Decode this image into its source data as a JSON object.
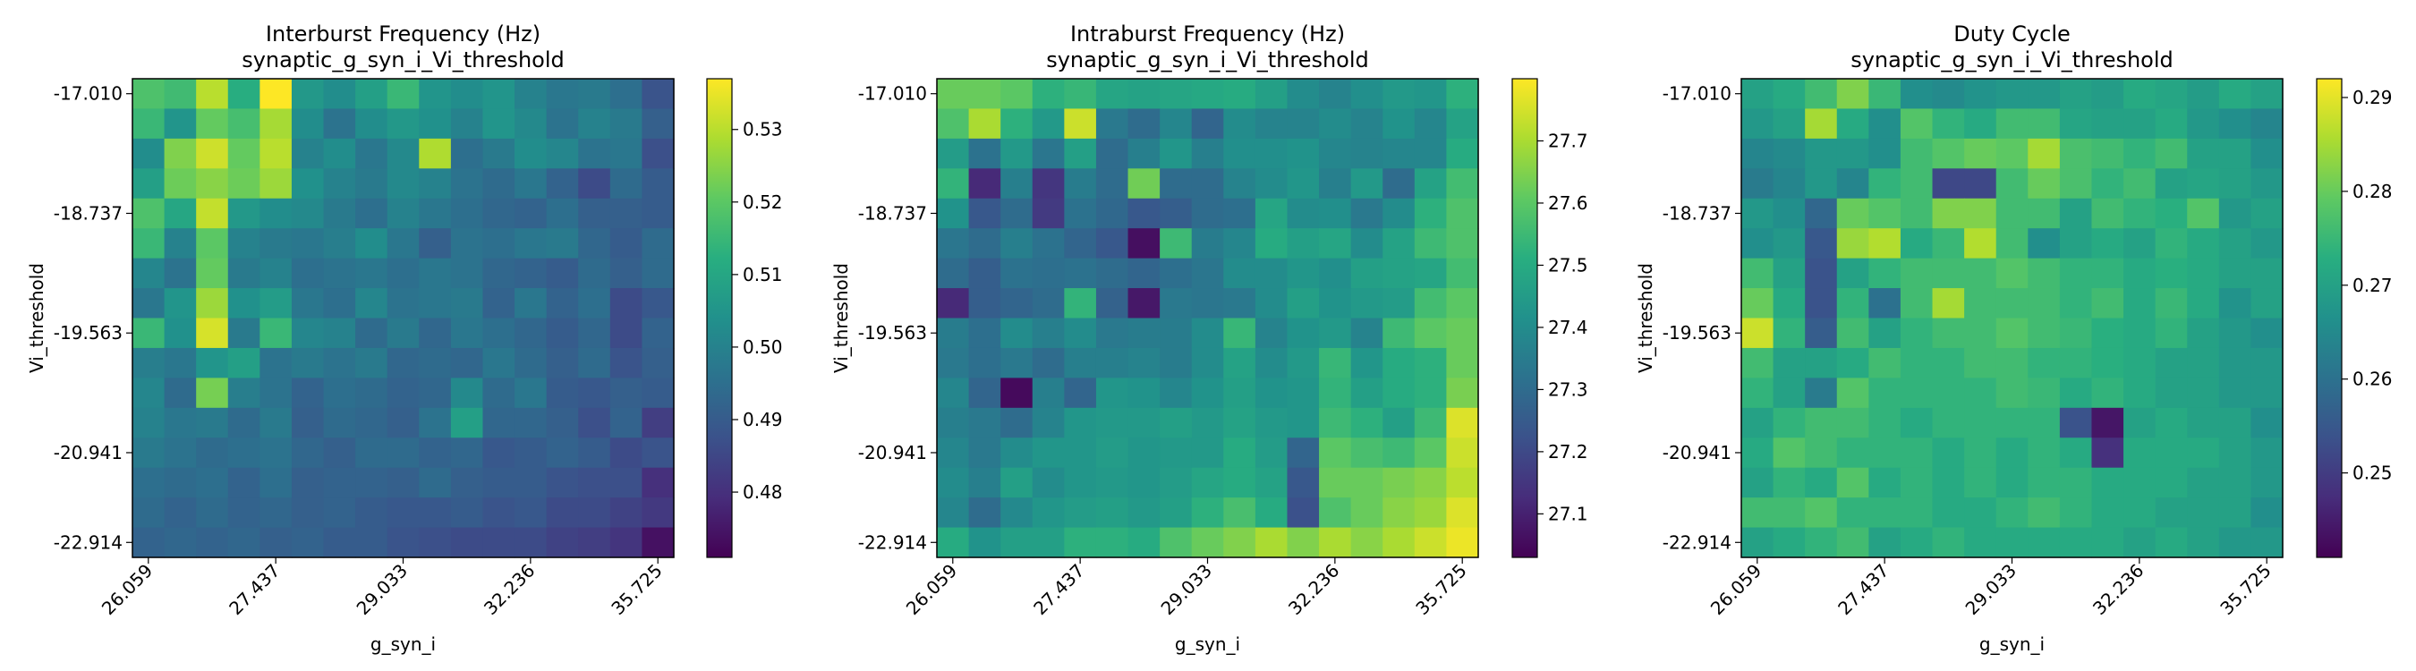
{
  "chart_data": [
    {
      "type": "heatmap",
      "title": "Interburst Frequency (Hz)",
      "subtitle": "synaptic_g_syn_i_Vi_threshold",
      "xlabel": "g_syn_i",
      "ylabel": "Vi_threshold",
      "x_tick_labels": [
        "26.059",
        "27.437",
        "29.033",
        "32.236",
        "35.725"
      ],
      "x_tick_indices": [
        0,
        4,
        8,
        12,
        16
      ],
      "y_tick_labels": [
        "-17.010",
        "-18.737",
        "-19.563",
        "-20.941",
        "-22.914"
      ],
      "y_tick_indices": [
        0,
        4,
        8,
        12,
        15
      ],
      "colorbar_ticks": [
        0.48,
        0.49,
        0.5,
        0.51,
        0.52,
        0.53
      ],
      "value_range": [
        0.471,
        0.537
      ],
      "rows": 16,
      "cols": 17,
      "grid": false,
      "colormap": "viridis",
      "values": [
        [
          0.518,
          0.516,
          0.53,
          0.512,
          0.537,
          0.506,
          0.503,
          0.508,
          0.515,
          0.505,
          0.503,
          0.505,
          0.5,
          0.497,
          0.498,
          0.495,
          0.488
        ],
        [
          0.515,
          0.505,
          0.521,
          0.517,
          0.528,
          0.503,
          0.496,
          0.503,
          0.506,
          0.504,
          0.5,
          0.505,
          0.502,
          0.496,
          0.5,
          0.498,
          0.491
        ],
        [
          0.503,
          0.524,
          0.532,
          0.521,
          0.53,
          0.5,
          0.503,
          0.497,
          0.502,
          0.529,
          0.495,
          0.498,
          0.503,
          0.501,
          0.496,
          0.497,
          0.487
        ],
        [
          0.508,
          0.522,
          0.525,
          0.522,
          0.527,
          0.504,
          0.5,
          0.498,
          0.502,
          0.5,
          0.496,
          0.494,
          0.497,
          0.492,
          0.486,
          0.494,
          0.49
        ],
        [
          0.518,
          0.51,
          0.531,
          0.506,
          0.503,
          0.502,
          0.498,
          0.495,
          0.5,
          0.497,
          0.495,
          0.493,
          0.492,
          0.495,
          0.491,
          0.491,
          0.49
        ],
        [
          0.515,
          0.5,
          0.52,
          0.5,
          0.498,
          0.497,
          0.499,
          0.503,
          0.497,
          0.491,
          0.496,
          0.495,
          0.497,
          0.498,
          0.493,
          0.49,
          0.494
        ],
        [
          0.501,
          0.496,
          0.521,
          0.498,
          0.5,
          0.495,
          0.496,
          0.497,
          0.495,
          0.497,
          0.496,
          0.493,
          0.492,
          0.49,
          0.494,
          0.491,
          0.494
        ],
        [
          0.497,
          0.505,
          0.527,
          0.504,
          0.507,
          0.497,
          0.495,
          0.501,
          0.496,
          0.497,
          0.498,
          0.492,
          0.497,
          0.492,
          0.495,
          0.486,
          0.489
        ],
        [
          0.515,
          0.504,
          0.533,
          0.498,
          0.515,
          0.501,
          0.5,
          0.494,
          0.498,
          0.493,
          0.497,
          0.495,
          0.493,
          0.49,
          0.493,
          0.486,
          0.492
        ],
        [
          0.499,
          0.497,
          0.505,
          0.508,
          0.496,
          0.498,
          0.496,
          0.498,
          0.493,
          0.494,
          0.493,
          0.497,
          0.494,
          0.491,
          0.494,
          0.488,
          0.491
        ],
        [
          0.501,
          0.494,
          0.523,
          0.499,
          0.496,
          0.492,
          0.495,
          0.494,
          0.492,
          0.493,
          0.502,
          0.494,
          0.497,
          0.49,
          0.489,
          0.491,
          0.49
        ],
        [
          0.5,
          0.497,
          0.498,
          0.494,
          0.498,
          0.491,
          0.494,
          0.493,
          0.491,
          0.496,
          0.508,
          0.493,
          0.493,
          0.491,
          0.487,
          0.492,
          0.483
        ],
        [
          0.498,
          0.496,
          0.494,
          0.495,
          0.496,
          0.493,
          0.491,
          0.494,
          0.494,
          0.492,
          0.493,
          0.489,
          0.49,
          0.492,
          0.49,
          0.486,
          0.488
        ],
        [
          0.495,
          0.494,
          0.495,
          0.492,
          0.495,
          0.491,
          0.492,
          0.492,
          0.491,
          0.494,
          0.491,
          0.49,
          0.49,
          0.488,
          0.487,
          0.487,
          0.48
        ],
        [
          0.494,
          0.492,
          0.494,
          0.492,
          0.493,
          0.491,
          0.492,
          0.49,
          0.489,
          0.489,
          0.49,
          0.488,
          0.489,
          0.486,
          0.486,
          0.484,
          0.482
        ],
        [
          0.492,
          0.493,
          0.492,
          0.493,
          0.491,
          0.492,
          0.49,
          0.49,
          0.488,
          0.487,
          0.486,
          0.486,
          0.486,
          0.484,
          0.483,
          0.481,
          0.474
        ]
      ]
    },
    {
      "type": "heatmap",
      "title": "Intraburst Frequency (Hz)",
      "subtitle": "synaptic_g_syn_i_Vi_threshold",
      "xlabel": "g_syn_i",
      "ylabel": "Vi_threshold",
      "x_tick_labels": [
        "26.059",
        "27.437",
        "29.033",
        "32.236",
        "35.725"
      ],
      "x_tick_indices": [
        0,
        4,
        8,
        12,
        16
      ],
      "y_tick_labels": [
        "-17.010",
        "-18.737",
        "-19.563",
        "-20.941",
        "-22.914"
      ],
      "y_tick_indices": [
        0,
        4,
        8,
        12,
        15
      ],
      "colorbar_ticks": [
        27.1,
        27.2,
        27.3,
        27.4,
        27.5,
        27.6,
        27.7
      ],
      "value_range": [
        27.03,
        27.8
      ],
      "rows": 16,
      "cols": 17,
      "grid": false,
      "colormap": "viridis",
      "values": [
        [
          27.62,
          27.62,
          27.6,
          27.52,
          27.54,
          27.48,
          27.47,
          27.48,
          27.49,
          27.5,
          27.46,
          27.4,
          27.37,
          27.41,
          27.44,
          27.43,
          27.52
        ],
        [
          27.58,
          27.7,
          27.52,
          27.44,
          27.74,
          27.34,
          27.3,
          27.38,
          27.28,
          27.4,
          27.37,
          27.37,
          27.4,
          27.37,
          27.42,
          27.38,
          27.47
        ],
        [
          27.45,
          27.32,
          27.44,
          27.33,
          27.46,
          27.3,
          27.36,
          27.43,
          27.36,
          27.41,
          27.41,
          27.42,
          27.38,
          27.37,
          27.38,
          27.38,
          27.5
        ],
        [
          27.53,
          27.12,
          27.36,
          27.15,
          27.35,
          27.3,
          27.63,
          27.3,
          27.3,
          27.37,
          27.4,
          27.43,
          27.36,
          27.44,
          27.3,
          27.47,
          27.56
        ],
        [
          27.42,
          27.24,
          27.3,
          27.16,
          27.32,
          27.29,
          27.24,
          27.26,
          27.3,
          27.31,
          27.48,
          27.4,
          27.41,
          27.34,
          27.4,
          27.52,
          27.58
        ],
        [
          27.33,
          27.3,
          27.36,
          27.32,
          27.28,
          27.24,
          27.06,
          27.55,
          27.35,
          27.38,
          27.5,
          27.46,
          27.48,
          27.4,
          27.47,
          27.55,
          27.58
        ],
        [
          27.3,
          27.26,
          27.32,
          27.31,
          27.32,
          27.3,
          27.28,
          27.31,
          27.33,
          27.4,
          27.4,
          27.43,
          27.41,
          27.46,
          27.47,
          27.48,
          27.56
        ],
        [
          27.12,
          27.26,
          27.28,
          27.3,
          27.53,
          27.27,
          27.08,
          27.34,
          27.33,
          27.34,
          27.4,
          27.46,
          27.42,
          27.44,
          27.45,
          27.56,
          27.6
        ],
        [
          27.35,
          27.31,
          27.4,
          27.36,
          27.4,
          27.34,
          27.35,
          27.35,
          27.4,
          27.54,
          27.37,
          27.42,
          27.44,
          27.37,
          27.55,
          27.6,
          27.62
        ],
        [
          27.34,
          27.31,
          27.34,
          27.3,
          27.36,
          27.36,
          27.37,
          27.35,
          27.4,
          27.47,
          27.4,
          27.44,
          27.54,
          27.43,
          27.5,
          27.52,
          27.62
        ],
        [
          27.38,
          27.28,
          27.05,
          27.36,
          27.28,
          27.43,
          27.42,
          27.38,
          27.42,
          27.46,
          27.42,
          27.43,
          27.53,
          27.46,
          27.5,
          27.52,
          27.64
        ],
        [
          27.36,
          27.34,
          27.3,
          27.37,
          27.43,
          27.44,
          27.44,
          27.46,
          27.44,
          27.47,
          27.44,
          27.43,
          27.55,
          27.52,
          27.46,
          27.55,
          27.76
        ],
        [
          27.38,
          27.34,
          27.4,
          27.43,
          27.43,
          27.45,
          27.43,
          27.44,
          27.44,
          27.5,
          27.45,
          27.28,
          27.6,
          27.57,
          27.55,
          27.6,
          27.74
        ],
        [
          27.4,
          27.36,
          27.46,
          27.4,
          27.43,
          27.44,
          27.43,
          27.45,
          27.48,
          27.5,
          27.47,
          27.24,
          27.62,
          27.62,
          27.64,
          27.66,
          27.72
        ],
        [
          27.38,
          27.3,
          27.39,
          27.43,
          27.45,
          27.46,
          27.44,
          27.46,
          27.52,
          27.57,
          27.5,
          27.22,
          27.58,
          27.62,
          27.66,
          27.68,
          27.76
        ],
        [
          27.5,
          27.42,
          27.46,
          27.46,
          27.52,
          27.52,
          27.5,
          27.58,
          27.62,
          27.65,
          27.7,
          27.65,
          27.7,
          27.66,
          27.7,
          27.74,
          27.78
        ]
      ]
    },
    {
      "type": "heatmap",
      "title": "Duty Cycle",
      "subtitle": "synaptic_g_syn_i_Vi_threshold",
      "xlabel": "g_syn_i",
      "ylabel": "Vi_threshold",
      "x_tick_labels": [
        "26.059",
        "27.437",
        "29.033",
        "32.236",
        "35.725"
      ],
      "x_tick_indices": [
        0,
        4,
        8,
        12,
        16
      ],
      "y_tick_labels": [
        "-17.010",
        "-18.737",
        "-19.563",
        "-20.941",
        "-22.914"
      ],
      "y_tick_indices": [
        0,
        4,
        8,
        12,
        15
      ],
      "colorbar_ticks": [
        0.25,
        0.26,
        0.27,
        0.28,
        0.29
      ],
      "value_range": [
        0.241,
        0.292
      ],
      "rows": 16,
      "cols": 17,
      "grid": false,
      "colormap": "viridis",
      "values": [
        [
          0.27,
          0.272,
          0.276,
          0.282,
          0.275,
          0.266,
          0.265,
          0.267,
          0.268,
          0.268,
          0.27,
          0.269,
          0.272,
          0.271,
          0.269,
          0.272,
          0.27
        ],
        [
          0.268,
          0.27,
          0.285,
          0.272,
          0.266,
          0.278,
          0.274,
          0.272,
          0.276,
          0.276,
          0.271,
          0.27,
          0.27,
          0.272,
          0.268,
          0.266,
          0.264
        ],
        [
          0.264,
          0.265,
          0.268,
          0.268,
          0.266,
          0.276,
          0.278,
          0.28,
          0.279,
          0.285,
          0.277,
          0.276,
          0.274,
          0.276,
          0.27,
          0.27,
          0.266
        ],
        [
          0.262,
          0.264,
          0.268,
          0.264,
          0.274,
          0.276,
          0.252,
          0.252,
          0.276,
          0.28,
          0.277,
          0.274,
          0.276,
          0.27,
          0.271,
          0.27,
          0.268
        ],
        [
          0.268,
          0.266,
          0.258,
          0.28,
          0.278,
          0.276,
          0.282,
          0.282,
          0.276,
          0.276,
          0.27,
          0.276,
          0.274,
          0.273,
          0.278,
          0.268,
          0.27
        ],
        [
          0.266,
          0.268,
          0.255,
          0.284,
          0.286,
          0.272,
          0.275,
          0.286,
          0.276,
          0.266,
          0.27,
          0.272,
          0.27,
          0.274,
          0.272,
          0.27,
          0.268
        ],
        [
          0.276,
          0.27,
          0.254,
          0.27,
          0.274,
          0.276,
          0.276,
          0.276,
          0.278,
          0.276,
          0.274,
          0.274,
          0.272,
          0.273,
          0.272,
          0.27,
          0.27
        ],
        [
          0.28,
          0.272,
          0.254,
          0.274,
          0.26,
          0.276,
          0.285,
          0.276,
          0.276,
          0.276,
          0.274,
          0.276,
          0.272,
          0.275,
          0.272,
          0.267,
          0.27
        ],
        [
          0.288,
          0.274,
          0.256,
          0.276,
          0.27,
          0.274,
          0.276,
          0.276,
          0.278,
          0.276,
          0.275,
          0.273,
          0.272,
          0.274,
          0.27,
          0.268,
          0.266
        ],
        [
          0.276,
          0.27,
          0.27,
          0.272,
          0.276,
          0.274,
          0.274,
          0.276,
          0.276,
          0.274,
          0.274,
          0.273,
          0.272,
          0.27,
          0.27,
          0.268,
          0.268
        ],
        [
          0.274,
          0.27,
          0.262,
          0.278,
          0.274,
          0.274,
          0.274,
          0.274,
          0.276,
          0.275,
          0.272,
          0.274,
          0.272,
          0.27,
          0.27,
          0.268,
          0.268
        ],
        [
          0.27,
          0.274,
          0.276,
          0.276,
          0.274,
          0.272,
          0.274,
          0.274,
          0.274,
          0.274,
          0.254,
          0.244,
          0.27,
          0.272,
          0.27,
          0.27,
          0.266
        ],
        [
          0.272,
          0.278,
          0.276,
          0.274,
          0.274,
          0.274,
          0.272,
          0.274,
          0.272,
          0.274,
          0.272,
          0.248,
          0.272,
          0.272,
          0.272,
          0.27,
          0.268
        ],
        [
          0.27,
          0.274,
          0.272,
          0.278,
          0.272,
          0.274,
          0.272,
          0.274,
          0.272,
          0.274,
          0.274,
          0.272,
          0.272,
          0.272,
          0.27,
          0.27,
          0.268
        ],
        [
          0.276,
          0.276,
          0.278,
          0.274,
          0.274,
          0.274,
          0.272,
          0.272,
          0.274,
          0.276,
          0.274,
          0.272,
          0.272,
          0.27,
          0.27,
          0.27,
          0.266
        ],
        [
          0.27,
          0.272,
          0.274,
          0.276,
          0.27,
          0.272,
          0.274,
          0.272,
          0.272,
          0.272,
          0.272,
          0.272,
          0.27,
          0.272,
          0.27,
          0.268,
          0.268
        ]
      ]
    }
  ]
}
